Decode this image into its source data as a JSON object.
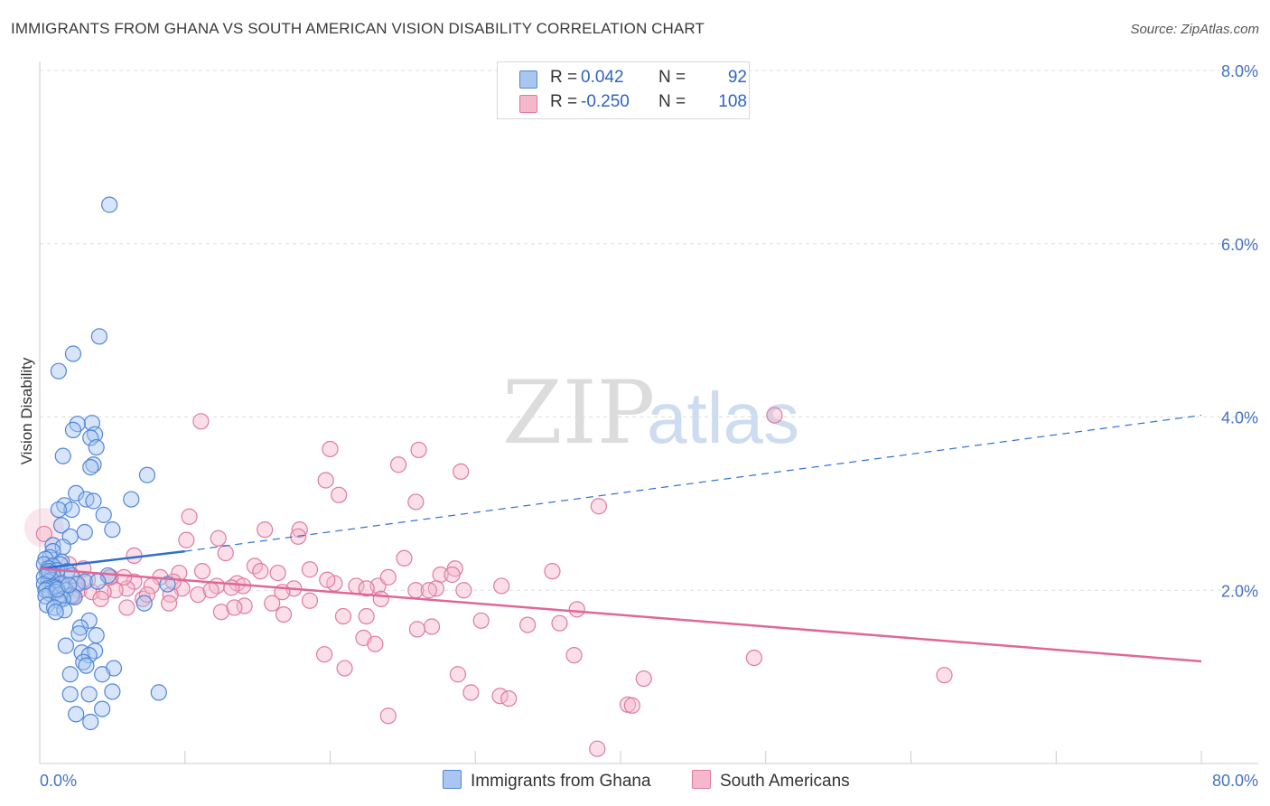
{
  "title": "IMMIGRANTS FROM GHANA VS SOUTH AMERICAN VISION DISABILITY CORRELATION CHART",
  "source": "Source: ZipAtlas.com",
  "watermark": {
    "part1": "ZIP",
    "part2": "atlas"
  },
  "colors": {
    "blue_fill": "#a9c6f0",
    "blue_stroke": "#4f86d8",
    "blue_line": "#2f6fd0",
    "pink_fill": "#f5b8cb",
    "pink_stroke": "#e07aa0",
    "pink_line": "#e06797",
    "grid": "#dddddd",
    "axis_text": "#4472c4"
  },
  "legend": {
    "rows": [
      {
        "r_label": "R =",
        "r_value": "0.042",
        "n_label": "N =",
        "n_value": "92"
      },
      {
        "r_label": "R =",
        "r_value": "-0.250",
        "n_label": "N =",
        "n_value": "108"
      }
    ]
  },
  "bottom_legend": {
    "series1": "Immigrants from Ghana",
    "series2": "South Americans"
  },
  "chart_data": {
    "type": "scatter",
    "xlabel": "",
    "ylabel": "Vision Disability",
    "xlim": [
      0,
      80
    ],
    "ylim": [
      0,
      8
    ],
    "y_ticks": [
      {
        "value": 2,
        "label": "2.0%"
      },
      {
        "value": 4,
        "label": "4.0%"
      },
      {
        "value": 6,
        "label": "6.0%"
      },
      {
        "value": 8,
        "label": "8.0%"
      }
    ],
    "x_ticks": [
      {
        "value": 0,
        "label": "0.0%"
      },
      {
        "value": 80,
        "label": "80.0%"
      }
    ],
    "series": [
      {
        "name": "Immigrants from Ghana",
        "color": "blue",
        "trend": {
          "solid": [
            [
              0,
              2.25
            ],
            [
              10,
              2.45
            ]
          ],
          "dashed": [
            [
              10,
              2.45
            ],
            [
              80,
              4.02
            ]
          ]
        },
        "points": [
          [
            4.8,
            6.45
          ],
          [
            4.1,
            4.93
          ],
          [
            2.3,
            4.73
          ],
          [
            1.3,
            4.53
          ],
          [
            3.6,
            3.93
          ],
          [
            2.6,
            3.92
          ],
          [
            2.3,
            3.85
          ],
          [
            3.8,
            3.8
          ],
          [
            3.5,
            3.76
          ],
          [
            3.9,
            3.65
          ],
          [
            1.6,
            3.55
          ],
          [
            3.7,
            3.45
          ],
          [
            3.5,
            3.42
          ],
          [
            7.4,
            3.33
          ],
          [
            2.5,
            3.12
          ],
          [
            6.3,
            3.05
          ],
          [
            3.2,
            3.05
          ],
          [
            3.7,
            3.03
          ],
          [
            1.7,
            2.98
          ],
          [
            2.2,
            2.93
          ],
          [
            1.3,
            2.93
          ],
          [
            4.4,
            2.87
          ],
          [
            1.5,
            2.75
          ],
          [
            5.0,
            2.7
          ],
          [
            3.1,
            2.67
          ],
          [
            2.1,
            2.62
          ],
          [
            0.9,
            2.52
          ],
          [
            1.6,
            2.5
          ],
          [
            0.9,
            2.45
          ],
          [
            0.7,
            2.38
          ],
          [
            0.4,
            2.36
          ],
          [
            1.5,
            2.33
          ],
          [
            1.4,
            2.3
          ],
          [
            0.3,
            2.3
          ],
          [
            0.9,
            2.28
          ],
          [
            0.6,
            2.25
          ],
          [
            1.2,
            2.23
          ],
          [
            1.9,
            2.22
          ],
          [
            0.5,
            2.2
          ],
          [
            0.9,
            2.18
          ],
          [
            2.2,
            2.17
          ],
          [
            4.7,
            2.17
          ],
          [
            0.3,
            2.15
          ],
          [
            0.8,
            2.12
          ],
          [
            3.1,
            2.1
          ],
          [
            4.0,
            2.1
          ],
          [
            0.6,
            2.1
          ],
          [
            1.5,
            2.08
          ],
          [
            2.6,
            2.07
          ],
          [
            0.3,
            2.07
          ],
          [
            8.8,
            2.07
          ],
          [
            0.9,
            2.04
          ],
          [
            1.1,
            2.03
          ],
          [
            0.5,
            2.02
          ],
          [
            1.8,
            2.0
          ],
          [
            0.4,
            2.0
          ],
          [
            1.1,
            1.98
          ],
          [
            0.7,
            1.96
          ],
          [
            1.4,
            1.95
          ],
          [
            2.2,
            1.94
          ],
          [
            0.4,
            1.93
          ],
          [
            2.4,
            1.92
          ],
          [
            1.6,
            1.9
          ],
          [
            1.3,
            1.88
          ],
          [
            7.2,
            1.85
          ],
          [
            0.5,
            1.83
          ],
          [
            1.0,
            1.8
          ],
          [
            1.7,
            1.77
          ],
          [
            1.1,
            1.75
          ],
          [
            3.4,
            1.65
          ],
          [
            2.8,
            1.57
          ],
          [
            2.7,
            1.5
          ],
          [
            3.9,
            1.48
          ],
          [
            1.8,
            1.36
          ],
          [
            2.9,
            1.28
          ],
          [
            3.8,
            1.3
          ],
          [
            3.4,
            1.25
          ],
          [
            3.0,
            1.17
          ],
          [
            3.2,
            1.13
          ],
          [
            5.1,
            1.1
          ],
          [
            2.1,
            1.03
          ],
          [
            4.3,
            1.03
          ],
          [
            5.0,
            0.83
          ],
          [
            8.2,
            0.82
          ],
          [
            3.4,
            0.8
          ],
          [
            2.1,
            0.8
          ],
          [
            4.3,
            0.63
          ],
          [
            2.5,
            0.57
          ],
          [
            3.5,
            0.48
          ],
          [
            0.6,
            2.22
          ],
          [
            1.2,
            2.01
          ],
          [
            2.0,
            2.06
          ]
        ]
      },
      {
        "name": "South Americans",
        "color": "pink",
        "trend": {
          "solid": [
            [
              0,
              2.25
            ],
            [
              80,
              1.18
            ]
          ]
        },
        "points": [
          [
            10.3,
            2.85
          ],
          [
            11.1,
            3.95
          ],
          [
            50.6,
            4.02
          ],
          [
            20.0,
            3.63
          ],
          [
            26.1,
            3.62
          ],
          [
            29.0,
            3.37
          ],
          [
            24.7,
            3.45
          ],
          [
            19.7,
            3.27
          ],
          [
            20.6,
            3.1
          ],
          [
            25.9,
            3.02
          ],
          [
            38.5,
            2.97
          ],
          [
            12.3,
            2.6
          ],
          [
            10.1,
            2.58
          ],
          [
            15.5,
            2.7
          ],
          [
            17.9,
            2.7
          ],
          [
            17.8,
            2.62
          ],
          [
            6.5,
            2.4
          ],
          [
            12.8,
            2.43
          ],
          [
            25.1,
            2.37
          ],
          [
            28.6,
            2.25
          ],
          [
            14.8,
            2.28
          ],
          [
            15.2,
            2.22
          ],
          [
            18.6,
            2.24
          ],
          [
            11.2,
            2.22
          ],
          [
            16.4,
            2.2
          ],
          [
            9.6,
            2.2
          ],
          [
            27.6,
            2.18
          ],
          [
            8.3,
            2.15
          ],
          [
            3.3,
            2.12
          ],
          [
            4.9,
            2.15
          ],
          [
            6.5,
            2.1
          ],
          [
            13.6,
            2.08
          ],
          [
            20.3,
            2.08
          ],
          [
            21.8,
            2.05
          ],
          [
            23.3,
            2.05
          ],
          [
            22.5,
            2.02
          ],
          [
            14.0,
            2.05
          ],
          [
            12.2,
            2.05
          ],
          [
            13.2,
            2.03
          ],
          [
            17.5,
            2.02
          ],
          [
            9.8,
            2.02
          ],
          [
            7.7,
            2.05
          ],
          [
            6.0,
            2.02
          ],
          [
            27.3,
            2.02
          ],
          [
            25.9,
            2.0
          ],
          [
            26.8,
            2.0
          ],
          [
            29.2,
            2.0
          ],
          [
            5.2,
            2.0
          ],
          [
            2.7,
            2.0
          ],
          [
            3.6,
            1.98
          ],
          [
            4.4,
            1.98
          ],
          [
            16.7,
            1.98
          ],
          [
            10.9,
            1.95
          ],
          [
            9.0,
            1.95
          ],
          [
            2.3,
            1.93
          ],
          [
            7.1,
            1.9
          ],
          [
            18.6,
            1.88
          ],
          [
            23.5,
            1.9
          ],
          [
            4.2,
            1.9
          ],
          [
            8.9,
            1.85
          ],
          [
            14.1,
            1.82
          ],
          [
            6.0,
            1.8
          ],
          [
            12.5,
            1.75
          ],
          [
            16.8,
            1.72
          ],
          [
            20.9,
            1.7
          ],
          [
            22.5,
            1.7
          ],
          [
            30.4,
            1.65
          ],
          [
            35.8,
            1.62
          ],
          [
            27.0,
            1.58
          ],
          [
            26.0,
            1.55
          ],
          [
            22.3,
            1.45
          ],
          [
            23.1,
            1.38
          ],
          [
            19.6,
            1.26
          ],
          [
            36.8,
            1.25
          ],
          [
            21.0,
            1.1
          ],
          [
            28.8,
            1.03
          ],
          [
            41.6,
            0.98
          ],
          [
            62.3,
            1.02
          ],
          [
            29.7,
            0.82
          ],
          [
            31.7,
            0.78
          ],
          [
            32.3,
            0.75
          ],
          [
            40.5,
            0.68
          ],
          [
            40.8,
            0.67
          ],
          [
            24.0,
            0.55
          ],
          [
            38.4,
            0.17
          ],
          [
            2.0,
            2.3
          ],
          [
            1.2,
            2.2
          ],
          [
            0.6,
            2.28
          ],
          [
            1.0,
            2.05
          ],
          [
            5.8,
            2.15
          ],
          [
            3.0,
            2.25
          ],
          [
            1.6,
            2.02
          ],
          [
            2.5,
            2.08
          ],
          [
            7.4,
            1.95
          ],
          [
            11.8,
            2.0
          ],
          [
            13.4,
            1.8
          ],
          [
            19.8,
            2.12
          ],
          [
            33.6,
            1.6
          ],
          [
            31.8,
            2.05
          ],
          [
            28.4,
            2.18
          ],
          [
            37.0,
            1.78
          ],
          [
            35.3,
            2.22
          ],
          [
            49.2,
            1.22
          ],
          [
            0.3,
            2.65
          ],
          [
            24.0,
            2.15
          ],
          [
            9.2,
            2.1
          ],
          [
            16.0,
            1.85
          ],
          [
            4.8,
            2.15
          ]
        ]
      }
    ]
  }
}
